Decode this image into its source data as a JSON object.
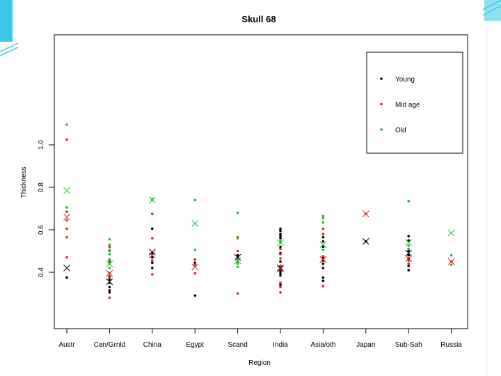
{
  "slide": {
    "decor_colors": [
      "#3cc8e8",
      "#8fe0f0",
      "#d6f3fa"
    ]
  },
  "chart_data": {
    "type": "scatter",
    "title": "Skull 68",
    "xlabel": "Region",
    "ylabel": "Thickness",
    "categories": [
      "Austr",
      "Can/Grnld",
      "China",
      "Egypt",
      "Scand",
      "India",
      "Asia/oth",
      "Japan",
      "Sub-Sah",
      "Russia"
    ],
    "yticks": [
      0.4,
      0.6,
      0.8,
      1.0
    ],
    "ytick_labels": [
      "0.4",
      "0.6",
      "0.8",
      "1.0"
    ],
    "ylim": [
      0.275,
      1.13
    ],
    "grid": false,
    "legend": {
      "position": "top-right",
      "entries": [
        "Young",
        "Mid age",
        "Old"
      ]
    },
    "series": [
      {
        "name": "Young",
        "color": "#000000",
        "points": [
          [
            0,
            0.375
          ],
          [
            1,
            0.395
          ],
          [
            1,
            0.38
          ],
          [
            1,
            0.365
          ],
          [
            1,
            0.35
          ],
          [
            1,
            0.33
          ],
          [
            1,
            0.315
          ],
          [
            1,
            0.305
          ],
          [
            1,
            0.455
          ],
          [
            2,
            0.605
          ],
          [
            2,
            0.49
          ],
          [
            2,
            0.47
          ],
          [
            2,
            0.445
          ],
          [
            2,
            0.42
          ],
          [
            3,
            0.29
          ],
          [
            3,
            0.445
          ],
          [
            4,
            0.48
          ],
          [
            4,
            0.46
          ],
          [
            4,
            0.47
          ],
          [
            4,
            0.445
          ],
          [
            5,
            0.605
          ],
          [
            5,
            0.595
          ],
          [
            5,
            0.58
          ],
          [
            5,
            0.57
          ],
          [
            5,
            0.56
          ],
          [
            5,
            0.545
          ],
          [
            5,
            0.49
          ],
          [
            5,
            0.45
          ],
          [
            5,
            0.43
          ],
          [
            5,
            0.415
          ],
          [
            5,
            0.405
          ],
          [
            5,
            0.395
          ],
          [
            5,
            0.385
          ],
          [
            5,
            0.35
          ],
          [
            5,
            0.34
          ],
          [
            5,
            0.52
          ],
          [
            6,
            0.565
          ],
          [
            6,
            0.545
          ],
          [
            6,
            0.52
          ],
          [
            6,
            0.47
          ],
          [
            6,
            0.455
          ],
          [
            6,
            0.44
          ],
          [
            6,
            0.42
          ],
          [
            6,
            0.375
          ],
          [
            6,
            0.36
          ],
          [
            7,
            0.545
          ],
          [
            8,
            0.57
          ],
          [
            8,
            0.55
          ],
          [
            8,
            0.5
          ],
          [
            8,
            0.48
          ],
          [
            8,
            0.465
          ],
          [
            8,
            0.43
          ],
          [
            8,
            0.41
          ]
        ]
      },
      {
        "name": "Mid age",
        "color": "#cc2a20",
        "points": [
          [
            0,
            1.025
          ],
          [
            0,
            0.685
          ],
          [
            0,
            0.645
          ],
          [
            0,
            0.605
          ],
          [
            0,
            0.565
          ],
          [
            0,
            0.47
          ],
          [
            1,
            0.52
          ],
          [
            1,
            0.5
          ],
          [
            1,
            0.45
          ],
          [
            1,
            0.395
          ],
          [
            1,
            0.375
          ],
          [
            1,
            0.28
          ],
          [
            2,
            0.675
          ],
          [
            2,
            0.56
          ],
          [
            2,
            0.455
          ],
          [
            2,
            0.39
          ],
          [
            3,
            0.46
          ],
          [
            3,
            0.435
          ],
          [
            3,
            0.395
          ],
          [
            4,
            0.3
          ],
          [
            4,
            0.565
          ],
          [
            4,
            0.5
          ],
          [
            4,
            0.46
          ],
          [
            5,
            0.51
          ],
          [
            5,
            0.485
          ],
          [
            5,
            0.465
          ],
          [
            5,
            0.43
          ],
          [
            5,
            0.35
          ],
          [
            5,
            0.33
          ],
          [
            5,
            0.305
          ],
          [
            6,
            0.605
          ],
          [
            6,
            0.58
          ],
          [
            6,
            0.475
          ],
          [
            6,
            0.46
          ],
          [
            6,
            0.335
          ],
          [
            7,
            0.675
          ],
          [
            8,
            0.455
          ],
          [
            8,
            0.44
          ],
          [
            9,
            0.45
          ]
        ]
      },
      {
        "name": "Old",
        "color": "#22bb33",
        "points": [
          [
            0,
            1.095
          ],
          [
            0,
            0.705
          ],
          [
            1,
            0.555
          ],
          [
            1,
            0.53
          ],
          [
            1,
            0.505
          ],
          [
            1,
            0.485
          ],
          [
            1,
            0.46
          ],
          [
            1,
            0.44
          ],
          [
            1,
            0.42
          ],
          [
            2,
            0.745
          ],
          [
            2,
            0.74
          ],
          [
            3,
            0.74
          ],
          [
            3,
            0.505
          ],
          [
            4,
            0.68
          ],
          [
            4,
            0.56
          ],
          [
            4,
            0.465
          ],
          [
            4,
            0.45
          ],
          [
            4,
            0.44
          ],
          [
            4,
            0.425
          ],
          [
            5,
            0.545
          ],
          [
            5,
            0.54
          ],
          [
            6,
            0.665
          ],
          [
            6,
            0.655
          ],
          [
            6,
            0.635
          ],
          [
            6,
            0.505
          ],
          [
            8,
            0.735
          ],
          [
            8,
            0.525
          ],
          [
            8,
            0.51
          ],
          [
            9,
            0.48
          ],
          [
            9,
            0.435
          ]
        ]
      }
    ],
    "means": [
      {
        "series": "Young",
        "points": [
          [
            0,
            0.42
          ],
          [
            1,
            0.355
          ],
          [
            2,
            0.495
          ],
          [
            4,
            0.47
          ],
          [
            5,
            0.42
          ],
          [
            6,
            0.46
          ],
          [
            7,
            0.545
          ],
          [
            8,
            0.49
          ]
        ]
      },
      {
        "series": "Mid age",
        "points": [
          [
            0,
            0.66
          ],
          [
            1,
            0.395
          ],
          [
            2,
            0.48
          ],
          [
            3,
            0.425
          ],
          [
            5,
            0.415
          ],
          [
            6,
            0.46
          ],
          [
            7,
            0.675
          ],
          [
            8,
            0.465
          ],
          [
            9,
            0.45
          ]
        ]
      },
      {
        "series": "Old",
        "points": [
          [
            0,
            0.785
          ],
          [
            1,
            0.44
          ],
          [
            2,
            0.74
          ],
          [
            3,
            0.63
          ],
          [
            4,
            0.455
          ],
          [
            5,
            0.54
          ],
          [
            6,
            0.53
          ],
          [
            8,
            0.54
          ],
          [
            9,
            0.585
          ]
        ]
      }
    ]
  }
}
